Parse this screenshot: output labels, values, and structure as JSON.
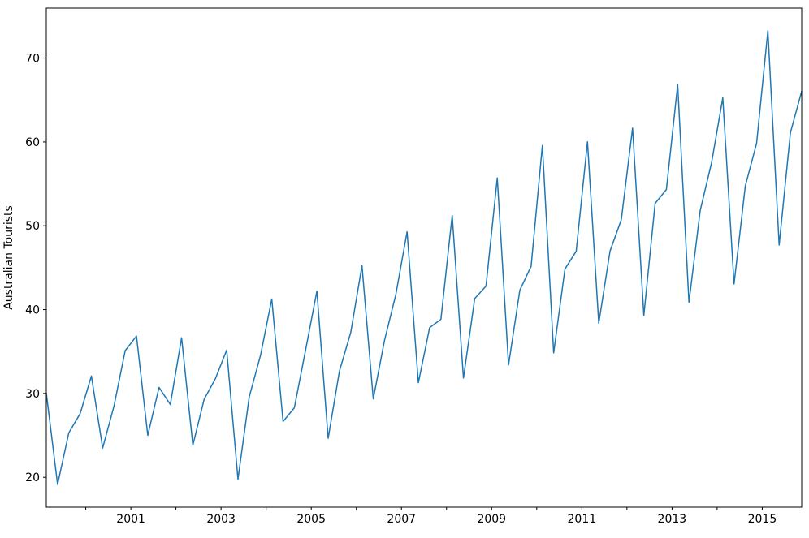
{
  "figure": {
    "background_color": "#ffffff",
    "spine_color": "#000000",
    "text_color": "#000000"
  },
  "chart_data": {
    "type": "line",
    "title": "",
    "xlabel": "",
    "ylabel": "Australian Tourists",
    "legend": "none",
    "grid": false,
    "x_start": 1999.0,
    "x_step": 0.25,
    "x_frequency": "quarterly",
    "xlim": [
      1999.0,
      2015.75
    ],
    "ylim": [
      16.44,
      75.96
    ],
    "y_ticks": [
      20,
      30,
      40,
      50,
      60,
      70
    ],
    "x_ticks": [
      {
        "year": 2000,
        "label": ""
      },
      {
        "year": 2001,
        "label": "2001"
      },
      {
        "year": 2002,
        "label": ""
      },
      {
        "year": 2003,
        "label": "2003"
      },
      {
        "year": 2004,
        "label": ""
      },
      {
        "year": 2005,
        "label": "2005"
      },
      {
        "year": 2006,
        "label": ""
      },
      {
        "year": 2007,
        "label": "2007"
      },
      {
        "year": 2008,
        "label": ""
      },
      {
        "year": 2009,
        "label": "2009"
      },
      {
        "year": 2010,
        "label": ""
      },
      {
        "year": 2011,
        "label": "2011"
      },
      {
        "year": 2012,
        "label": ""
      },
      {
        "year": 2013,
        "label": "2013"
      },
      {
        "year": 2014,
        "label": ""
      },
      {
        "year": 2015,
        "label": "2015"
      }
    ],
    "series": [
      {
        "name": "Australian Tourists",
        "color": "#1f77b4",
        "line_width": 1.5,
        "values": [
          30.05,
          19.15,
          25.32,
          27.59,
          32.08,
          23.49,
          28.48,
          35.12,
          36.84,
          25.01,
          30.72,
          28.69,
          36.64,
          23.82,
          29.31,
          31.77,
          35.18,
          19.78,
          29.6,
          34.54,
          41.27,
          26.66,
          28.28,
          35.19,
          42.21,
          24.65,
          32.67,
          37.26,
          45.24,
          29.35,
          36.34,
          41.78,
          49.28,
          31.28,
          37.85,
          38.84,
          51.24,
          31.84,
          41.32,
          42.8,
          55.71,
          33.41,
          42.32,
          45.16,
          59.58,
          34.84,
          44.84,
          46.97,
          60.02,
          38.37,
          46.98,
          50.73,
          61.65,
          39.3,
          52.67,
          54.33,
          66.83,
          40.87,
          51.83,
          57.49,
          65.25,
          43.06,
          54.76,
          59.83,
          73.26,
          47.7,
          61.1,
          66.06
        ]
      }
    ]
  }
}
